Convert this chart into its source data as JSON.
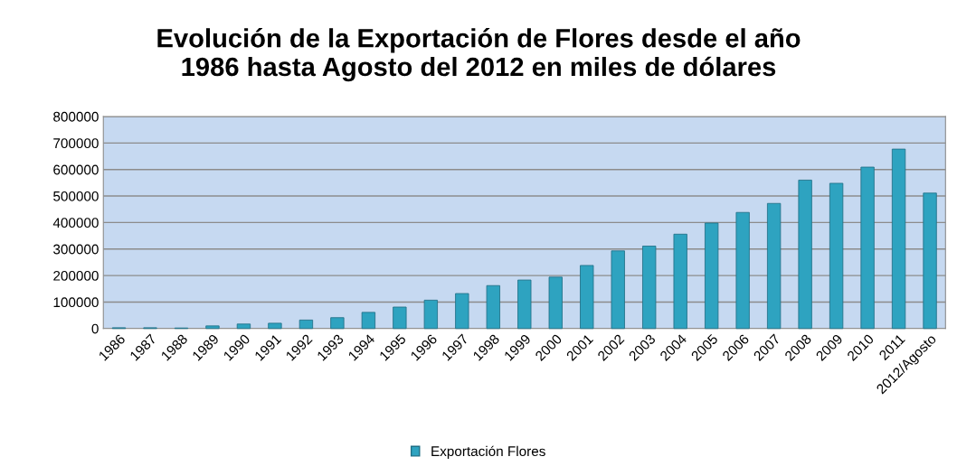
{
  "chart_data": {
    "type": "bar",
    "title": "Evolución de la Exportación de Flores desde el año\n1986 hasta Agosto del 2012 en miles de dólares",
    "categories": [
      "1986",
      "1987",
      "1988",
      "1989",
      "1990",
      "1991",
      "1992",
      "1993",
      "1994",
      "1995",
      "1996",
      "1997",
      "1998",
      "1999",
      "2000",
      "2001",
      "2002",
      "2003",
      "2004",
      "2005",
      "2006",
      "2007",
      "2008",
      "2009",
      "2010",
      "2011",
      "2012/Agosto"
    ],
    "series": [
      {
        "name": "Exportación Flores",
        "color": "#2ea3c0",
        "values": [
          3000,
          3000,
          2000,
          10000,
          17000,
          20000,
          32000,
          41000,
          61000,
          81000,
          107000,
          132000,
          162000,
          183000,
          194000,
          238000,
          293000,
          311000,
          356000,
          398000,
          438000,
          472000,
          560000,
          548000,
          609000,
          677000,
          511000
        ]
      }
    ],
    "ylim": [
      0,
      800000
    ],
    "yticks": [
      0,
      100000,
      200000,
      300000,
      400000,
      500000,
      600000,
      700000,
      800000
    ],
    "grid": "y",
    "legend": "bottom"
  }
}
